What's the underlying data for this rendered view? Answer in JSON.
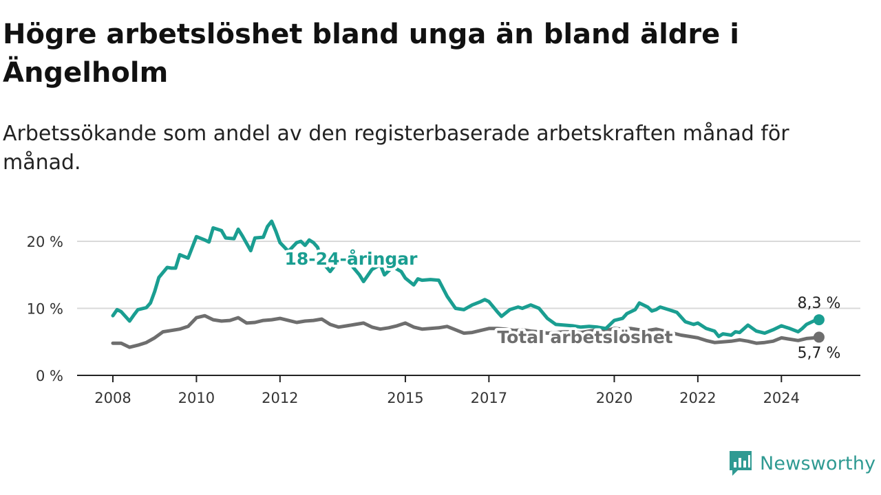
{
  "title": "Högre arbetslöshet bland unga än bland äldre i Ängelholm",
  "subtitle": "Arbetssökande som andel av den registerbaserade arbetskraften månad för månad.",
  "brand": {
    "name": "Newsworthy",
    "icon": "newsworthy-logo-icon"
  },
  "colors": {
    "youth": "#1a9e91",
    "total": "#6e6e6e",
    "grid": "#d9d9d9",
    "axis": "#222222"
  },
  "chart_data": {
    "type": "line",
    "xlabel": "",
    "ylabel": "",
    "ylim": [
      0,
      20
    ],
    "xlim": [
      2008,
      2025
    ],
    "grid": true,
    "y_ticks": [
      {
        "value": 0,
        "label": "0 %"
      },
      {
        "value": 10,
        "label": "10 %"
      },
      {
        "value": 20,
        "label": "20 %"
      }
    ],
    "x_ticks": [
      {
        "value": 2008,
        "label": "2008"
      },
      {
        "value": 2010,
        "label": "2010"
      },
      {
        "value": 2012,
        "label": "2012"
      },
      {
        "value": 2015,
        "label": "2015"
      },
      {
        "value": 2017,
        "label": "2017"
      },
      {
        "value": 2020,
        "label": "2020"
      },
      {
        "value": 2022,
        "label": "2022"
      },
      {
        "value": 2024,
        "label": "2024"
      }
    ],
    "series": [
      {
        "name": "18-24-åringar",
        "key": "youth",
        "end_label": "8,3 %",
        "x": [
          2008.0,
          2008.1,
          2008.2,
          2008.4,
          2008.5,
          2008.6,
          2008.8,
          2008.9,
          2009.0,
          2009.1,
          2009.3,
          2009.4,
          2009.5,
          2009.6,
          2009.8,
          2010.0,
          2010.2,
          2010.3,
          2010.4,
          2010.6,
          2010.7,
          2010.9,
          2011.0,
          2011.1,
          2011.3,
          2011.4,
          2011.6,
          2011.7,
          2011.8,
          2011.9,
          2012.0,
          2012.2,
          2012.4,
          2012.5,
          2012.6,
          2012.7,
          2012.8,
          2012.9,
          2013.0,
          2013.2,
          2013.3,
          2013.5,
          2013.7,
          2013.9,
          2014.0,
          2014.2,
          2014.4,
          2014.5,
          2014.7,
          2014.9,
          2015.0,
          2015.2,
          2015.3,
          2015.4,
          2015.6,
          2015.8,
          2016.0,
          2016.2,
          2016.4,
          2016.6,
          2016.8,
          2016.9,
          2017.0,
          2017.2,
          2017.3,
          2017.5,
          2017.7,
          2017.8,
          2018.0,
          2018.2,
          2018.4,
          2018.6,
          2018.8,
          2019.0,
          2019.2,
          2019.4,
          2019.6,
          2019.8,
          2020.0,
          2020.2,
          2020.3,
          2020.5,
          2020.6,
          2020.8,
          2020.9,
          2021.0,
          2021.1,
          2021.3,
          2021.5,
          2021.7,
          2021.9,
          2022.0,
          2022.2,
          2022.4,
          2022.5,
          2022.6,
          2022.8,
          2022.9,
          2023.0,
          2023.2,
          2023.4,
          2023.6,
          2023.8,
          2024.0,
          2024.2,
          2024.4,
          2024.5,
          2024.6,
          2024.8,
          2024.9
        ],
        "y": [
          8.9,
          9.8,
          9.5,
          8.1,
          9.0,
          9.8,
          10.1,
          10.8,
          12.5,
          14.6,
          16.1,
          16.0,
          16.0,
          18.0,
          17.5,
          20.7,
          20.2,
          19.9,
          22.0,
          21.6,
          20.5,
          20.4,
          21.8,
          20.8,
          18.6,
          20.5,
          20.6,
          22.2,
          23.0,
          21.5,
          19.8,
          18.5,
          19.8,
          20.0,
          19.4,
          20.2,
          19.8,
          19.1,
          17.0,
          15.5,
          16.3,
          17.5,
          16.5,
          15.0,
          14.0,
          15.8,
          16.5,
          15.0,
          16.2,
          15.5,
          14.5,
          13.5,
          14.4,
          14.2,
          14.3,
          14.2,
          11.8,
          10.0,
          9.8,
          10.5,
          11.0,
          11.3,
          11.0,
          9.5,
          8.8,
          9.8,
          10.2,
          10.0,
          10.5,
          10.0,
          8.5,
          7.6,
          7.5,
          7.4,
          7.2,
          7.3,
          7.2,
          7.0,
          8.2,
          8.5,
          9.2,
          9.8,
          10.8,
          10.2,
          9.6,
          9.8,
          10.2,
          9.8,
          9.4,
          8.0,
          7.6,
          7.8,
          7.0,
          6.6,
          5.8,
          6.2,
          6.0,
          6.5,
          6.4,
          7.5,
          6.6,
          6.3,
          6.8,
          7.4,
          7.0,
          6.5,
          7.0,
          7.6,
          8.2,
          8.3
        ]
      },
      {
        "name": "Total arbetslöshet",
        "key": "total",
        "end_label": "5,7 %",
        "x": [
          2008.0,
          2008.2,
          2008.4,
          2008.6,
          2008.8,
          2009.0,
          2009.2,
          2009.4,
          2009.6,
          2009.8,
          2010.0,
          2010.2,
          2010.4,
          2010.6,
          2010.8,
          2011.0,
          2011.2,
          2011.4,
          2011.6,
          2011.8,
          2012.0,
          2012.2,
          2012.4,
          2012.6,
          2012.8,
          2013.0,
          2013.2,
          2013.4,
          2013.6,
          2013.8,
          2014.0,
          2014.2,
          2014.4,
          2014.6,
          2014.8,
          2015.0,
          2015.2,
          2015.4,
          2015.6,
          2015.8,
          2016.0,
          2016.2,
          2016.4,
          2016.6,
          2016.8,
          2017.0,
          2017.2,
          2017.4,
          2017.6,
          2017.8,
          2018.0,
          2018.2,
          2018.4,
          2018.6,
          2018.8,
          2019.0,
          2019.2,
          2019.4,
          2019.6,
          2019.8,
          2020.0,
          2020.2,
          2020.4,
          2020.6,
          2020.8,
          2021.0,
          2021.2,
          2021.4,
          2021.6,
          2021.8,
          2022.0,
          2022.2,
          2022.4,
          2022.6,
          2022.8,
          2023.0,
          2023.2,
          2023.4,
          2023.6,
          2023.8,
          2024.0,
          2024.2,
          2024.4,
          2024.6,
          2024.8,
          2024.9
        ],
        "y": [
          4.8,
          4.8,
          4.2,
          4.5,
          4.9,
          5.6,
          6.5,
          6.7,
          6.9,
          7.3,
          8.6,
          8.9,
          8.3,
          8.1,
          8.2,
          8.6,
          7.8,
          7.9,
          8.2,
          8.3,
          8.5,
          8.2,
          7.9,
          8.1,
          8.2,
          8.4,
          7.6,
          7.2,
          7.4,
          7.6,
          7.8,
          7.2,
          6.9,
          7.1,
          7.4,
          7.8,
          7.2,
          6.9,
          7.0,
          7.1,
          7.3,
          6.8,
          6.3,
          6.4,
          6.7,
          7.0,
          7.0,
          6.9,
          6.7,
          6.8,
          6.6,
          6.5,
          6.3,
          6.4,
          6.5,
          6.5,
          6.4,
          6.6,
          6.8,
          6.7,
          7.0,
          6.9,
          7.0,
          6.8,
          6.7,
          6.9,
          6.6,
          6.3,
          6.0,
          5.8,
          5.6,
          5.2,
          4.9,
          5.0,
          5.1,
          5.3,
          5.1,
          4.8,
          4.9,
          5.1,
          5.6,
          5.4,
          5.2,
          5.5,
          5.6,
          5.7
        ]
      }
    ]
  }
}
